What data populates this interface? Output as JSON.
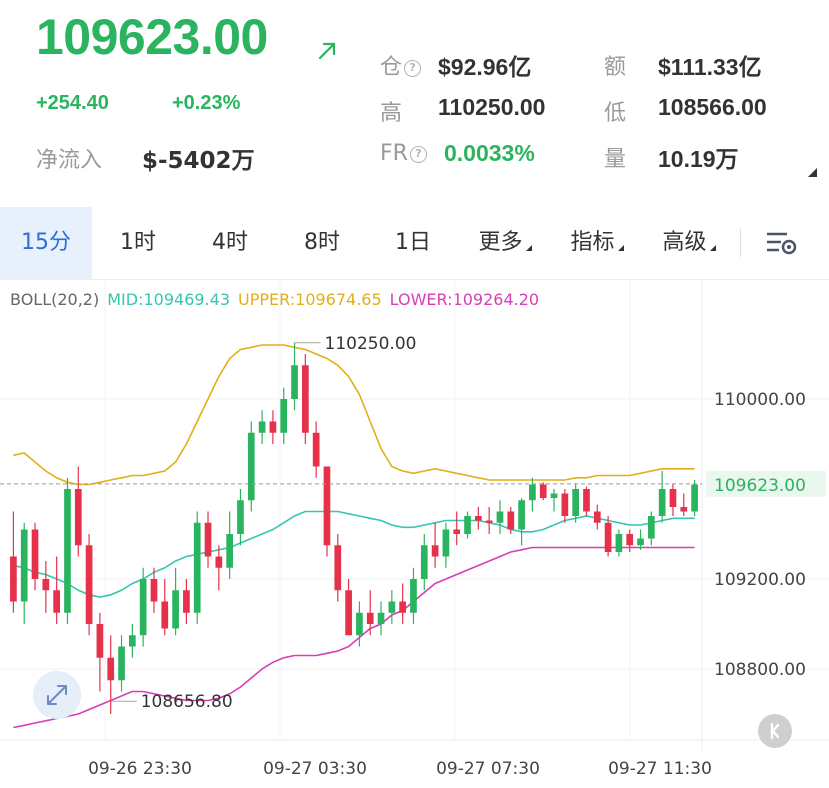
{
  "ticker": {
    "price": "109623.00",
    "change_abs": "+254.40",
    "change_pct": "+0.23%",
    "netflow_label": "净流入",
    "netflow_value": "$-5402万"
  },
  "stats": {
    "open_interest_label": "仓",
    "open_interest_value": "$92.96亿",
    "turnover_label": "额",
    "turnover_value": "$111.33亿",
    "high_label": "高",
    "high_value": "110250.00",
    "low_label": "低",
    "low_value": "108566.00",
    "fr_label": "FR",
    "fr_value": "0.0033%",
    "volume_label": "量",
    "volume_value": "10.19万",
    "help_glyph": "?"
  },
  "tabs": [
    {
      "label": "15分",
      "active": true
    },
    {
      "label": "1时"
    },
    {
      "label": "4时"
    },
    {
      "label": "8时"
    },
    {
      "label": "1日"
    },
    {
      "label": "更多",
      "dropdown": true
    },
    {
      "label": "指标",
      "dropdown": true
    },
    {
      "label": "高级",
      "dropdown": true
    }
  ],
  "indicator": {
    "name": "BOLL(20,2)",
    "mid": "MID:109469.43",
    "upper": "UPPER:109674.65",
    "lower": "LOWER:109264.20"
  },
  "colors": {
    "up": "#2bb45f",
    "down": "#e5324a",
    "mid": "#35c6b0",
    "upper": "#e3ae17",
    "lower": "#d63fb6",
    "accent": "#2a6fdb"
  },
  "icons": {
    "trend": "arrow-up-right-icon",
    "settings": "chart-settings-icon",
    "expand": "expand-icon",
    "k": "k-back-icon"
  },
  "chart_data": {
    "type": "candlestick",
    "interval": "15分",
    "y_ticks": [
      "110000.00",
      "109200.00",
      "108800.00"
    ],
    "y_tick_values": [
      110000,
      109200,
      108800
    ],
    "x_ticks": [
      "09-26 23:30",
      "09-27 03:30",
      "09-27 07:30",
      "09-27 11:30"
    ],
    "current_price_label": "109623.00",
    "current_price": 109623,
    "high_label": "110250.00",
    "high": 110250,
    "low_label": "108656.80",
    "low": 108656.8,
    "candles": [
      [
        109300,
        109500,
        109050,
        109100
      ],
      [
        109100,
        109450,
        109000,
        109420
      ],
      [
        109420,
        109450,
        109150,
        109200
      ],
      [
        109200,
        109280,
        109050,
        109150
      ],
      [
        109150,
        109300,
        109000,
        109050
      ],
      [
        109050,
        109650,
        109000,
        109600
      ],
      [
        109600,
        109700,
        109300,
        109350
      ],
      [
        109350,
        109400,
        108950,
        109000
      ],
      [
        109000,
        109050,
        108700,
        108850
      ],
      [
        108850,
        108950,
        108600,
        108750
      ],
      [
        108750,
        108950,
        108700,
        108900
      ],
      [
        108900,
        109000,
        108850,
        108950
      ],
      [
        108950,
        109250,
        108900,
        109200
      ],
      [
        109200,
        109250,
        109050,
        109100
      ],
      [
        109100,
        109200,
        108950,
        108980
      ],
      [
        108980,
        109250,
        108950,
        109150
      ],
      [
        109150,
        109200,
        109000,
        109050
      ],
      [
        109050,
        109500,
        109000,
        109450
      ],
      [
        109450,
        109500,
        109250,
        109300
      ],
      [
        109300,
        109350,
        109150,
        109250
      ],
      [
        109250,
        109500,
        109200,
        109400
      ],
      [
        109400,
        109600,
        109350,
        109550
      ],
      [
        109550,
        109900,
        109500,
        109850
      ],
      [
        109850,
        109950,
        109800,
        109900
      ],
      [
        109900,
        109950,
        109800,
        109850
      ],
      [
        109850,
        110050,
        109800,
        110000
      ],
      [
        110000,
        110250,
        109950,
        110150
      ],
      [
        110150,
        110200,
        109800,
        109850
      ],
      [
        109850,
        109900,
        109650,
        109700
      ],
      [
        109700,
        109700,
        109300,
        109350
      ],
      [
        109350,
        109400,
        109100,
        109150
      ],
      [
        109150,
        109200,
        108950,
        108950
      ],
      [
        108950,
        109100,
        108900,
        109050
      ],
      [
        109050,
        109150,
        108950,
        109000
      ],
      [
        109000,
        109100,
        108950,
        109050
      ],
      [
        109050,
        109150,
        109000,
        109100
      ],
      [
        109100,
        109180,
        109000,
        109050
      ],
      [
        109050,
        109250,
        109000,
        109200
      ],
      [
        109200,
        109400,
        109150,
        109350
      ],
      [
        109350,
        109450,
        109250,
        109300
      ],
      [
        109300,
        109450,
        109250,
        109420
      ],
      [
        109420,
        109500,
        109350,
        109400
      ],
      [
        109400,
        109500,
        109380,
        109480
      ],
      [
        109480,
        109520,
        109420,
        109460
      ],
      [
        109460,
        109520,
        109400,
        109450
      ],
      [
        109450,
        109550,
        109400,
        109500
      ],
      [
        109500,
        109520,
        109400,
        109420
      ],
      [
        109420,
        109560,
        109350,
        109550
      ],
      [
        109550,
        109650,
        109500,
        109620
      ],
      [
        109620,
        109630,
        109550,
        109560
      ],
      [
        109560,
        109600,
        109500,
        109580
      ],
      [
        109580,
        109600,
        109450,
        109480
      ],
      [
        109480,
        109620,
        109450,
        109600
      ],
      [
        109600,
        109610,
        109480,
        109500
      ],
      [
        109500,
        109530,
        109420,
        109450
      ],
      [
        109450,
        109480,
        109300,
        109320
      ],
      [
        109320,
        109420,
        109300,
        109400
      ],
      [
        109400,
        109420,
        109320,
        109350
      ],
      [
        109350,
        109420,
        109330,
        109380
      ],
      [
        109380,
        109500,
        109350,
        109480
      ],
      [
        109480,
        109680,
        109450,
        109600
      ],
      [
        109600,
        109620,
        109480,
        109520
      ],
      [
        109520,
        109580,
        109480,
        109500
      ],
      [
        109500,
        109640,
        109480,
        109620
      ]
    ],
    "mid_line": [
      109260,
      109250,
      109230,
      109220,
      109200,
      109180,
      109150,
      109130,
      109120,
      109130,
      109150,
      109180,
      109200,
      109230,
      109250,
      109280,
      109300,
      109310,
      109320,
      109330,
      109340,
      109360,
      109380,
      109400,
      109420,
      109450,
      109480,
      109500,
      109500,
      109500,
      109500,
      109490,
      109480,
      109470,
      109460,
      109440,
      109430,
      109430,
      109440,
      109450,
      109460,
      109460,
      109460,
      109460,
      109450,
      109440,
      109420,
      109410,
      109410,
      109420,
      109440,
      109460,
      109470,
      109480,
      109470,
      109460,
      109450,
      109440,
      109440,
      109450,
      109460,
      109470,
      109470,
      109470
    ],
    "upper_line": [
      109750,
      109760,
      109720,
      109680,
      109650,
      109630,
      109620,
      109620,
      109630,
      109640,
      109650,
      109660,
      109660,
      109670,
      109680,
      109720,
      109800,
      109900,
      110000,
      110100,
      110180,
      110220,
      110230,
      110240,
      110240,
      110240,
      110230,
      110220,
      110200,
      110180,
      110150,
      110100,
      110020,
      109900,
      109780,
      109700,
      109680,
      109670,
      109680,
      109690,
      109680,
      109670,
      109660,
      109650,
      109640,
      109640,
      109640,
      109640,
      109640,
      109640,
      109640,
      109640,
      109650,
      109650,
      109660,
      109660,
      109660,
      109660,
      109670,
      109680,
      109690,
      109690,
      109690,
      109690
    ],
    "lower_line": [
      108540,
      108550,
      108560,
      108570,
      108580,
      108590,
      108600,
      108620,
      108640,
      108660,
      108680,
      108700,
      108700,
      108690,
      108680,
      108670,
      108660,
      108660,
      108660,
      108670,
      108690,
      108720,
      108760,
      108800,
      108830,
      108850,
      108860,
      108860,
      108860,
      108870,
      108880,
      108900,
      108940,
      108980,
      109000,
      109040,
      109060,
      109100,
      109140,
      109180,
      109200,
      109220,
      109240,
      109260,
      109280,
      109300,
      109320,
      109330,
      109340,
      109340,
      109340,
      109340,
      109340,
      109340,
      109340,
      109340,
      109340,
      109340,
      109340,
      109340,
      109340,
      109340,
      109340,
      109340
    ]
  }
}
